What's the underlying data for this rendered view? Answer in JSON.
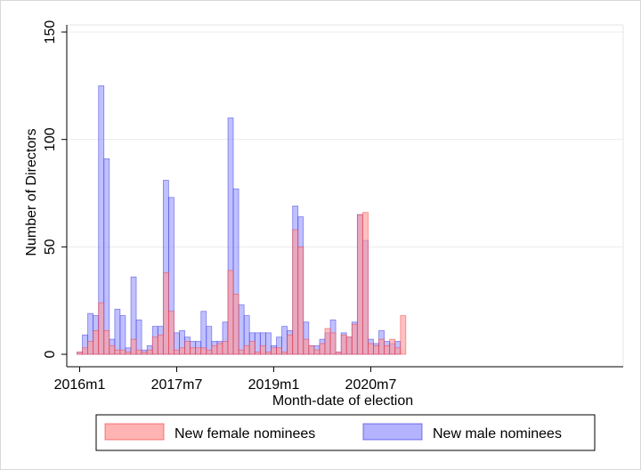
{
  "chart_data": {
    "type": "bar",
    "xlabel": "Month-date of election",
    "ylabel": "Number of Directors",
    "ylim": [
      0,
      150
    ],
    "yticks": [
      0,
      50,
      100,
      150
    ],
    "grid": "horizontal",
    "legend_position": "bottom",
    "months": [
      "2016m1",
      "2016m2",
      "2016m3",
      "2016m4",
      "2016m5",
      "2016m6",
      "2016m7",
      "2016m8",
      "2016m9",
      "2016m10",
      "2016m11",
      "2016m12",
      "2017m1",
      "2017m2",
      "2017m3",
      "2017m4",
      "2017m5",
      "2017m6",
      "2017m7",
      "2017m8",
      "2017m9",
      "2017m10",
      "2017m11",
      "2017m12",
      "2018m1",
      "2018m2",
      "2018m3",
      "2018m4",
      "2018m5",
      "2018m6",
      "2018m7",
      "2018m8",
      "2018m9",
      "2018m10",
      "2018m11",
      "2018m12",
      "2019m1",
      "2019m2",
      "2019m3",
      "2019m4",
      "2019m5",
      "2019m6",
      "2019m7",
      "2019m8",
      "2019m9",
      "2019m10",
      "2019m11",
      "2019m12",
      "2020m1",
      "2020m2",
      "2020m3",
      "2020m4",
      "2020m5",
      "2020m6",
      "2020m7",
      "2020m8",
      "2020m9",
      "2020m10",
      "2020m11",
      "2020m12",
      "2021m1"
    ],
    "xticks": [
      {
        "label": "2016m1",
        "index": 0
      },
      {
        "label": "2017m7",
        "index": 18
      },
      {
        "label": "2019m1",
        "index": 36
      },
      {
        "label": "2020m7",
        "index": 54
      }
    ],
    "series": [
      {
        "name": "New male nominees",
        "color": "#9999ff",
        "edge": "#2b2bdd",
        "values": [
          1,
          9,
          19,
          18,
          125,
          91,
          7,
          21,
          18,
          3,
          36,
          16,
          2,
          4,
          13,
          13,
          81,
          73,
          10,
          11,
          8,
          6,
          6,
          20,
          13,
          6,
          6,
          15,
          110,
          77,
          23,
          18,
          10,
          10,
          10,
          10,
          4,
          8,
          13,
          11,
          69,
          64,
          15,
          4,
          4,
          7,
          10,
          16,
          1,
          10,
          8,
          15,
          65,
          53,
          7,
          5,
          11,
          6,
          5,
          6,
          0
        ],
        "legend_label": "New male nominees"
      },
      {
        "name": "New female nominees",
        "color": "#ff9999",
        "edge": "#ee3333",
        "values": [
          1,
          3,
          6,
          11,
          24,
          11,
          4,
          2,
          2,
          1,
          7,
          2,
          1,
          2,
          8,
          9,
          38,
          20,
          2,
          3,
          6,
          3,
          3,
          3,
          2,
          4,
          5,
          6,
          39,
          28,
          2,
          4,
          6,
          1,
          4,
          1,
          3,
          3,
          1,
          9,
          58,
          50,
          7,
          4,
          2,
          5,
          12,
          10,
          1,
          9,
          8,
          14,
          65,
          66,
          5,
          4,
          7,
          4,
          7,
          3,
          18
        ],
        "legend_label": "New female nominees"
      }
    ]
  }
}
